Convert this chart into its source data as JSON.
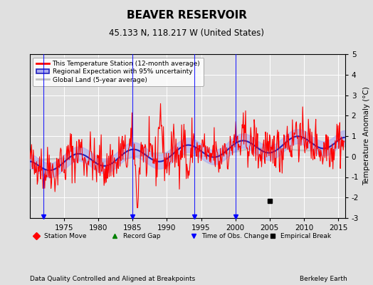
{
  "title": "BEAVER RESERVOIR",
  "subtitle": "45.133 N, 118.217 W (United States)",
  "xlabel_note": "Data Quality Controlled and Aligned at Breakpoints",
  "xlabel_right": "Berkeley Earth",
  "ylabel": "Temperature Anomaly (°C)",
  "xlim": [
    1970,
    2016
  ],
  "ylim": [
    -3,
    5
  ],
  "yticks": [
    -3,
    -2,
    -1,
    0,
    1,
    2,
    3,
    4,
    5
  ],
  "xticks": [
    1975,
    1980,
    1985,
    1990,
    1995,
    2000,
    2005,
    2010,
    2015
  ],
  "bg_color": "#e0e0e0",
  "plot_bg_color": "#e0e0e0",
  "station_color": "#ff0000",
  "regional_color": "#2222bb",
  "regional_fill_color": "#aaaaee",
  "global_color": "#c0c0c0",
  "legend_labels": [
    "This Temperature Station (12-month average)",
    "Regional Expectation with 95% uncertainty",
    "Global Land (5-year average)"
  ],
  "obs_change_years": [
    1972,
    1985,
    1994,
    2000
  ],
  "empirical_break_year": 2005,
  "seed": 42
}
